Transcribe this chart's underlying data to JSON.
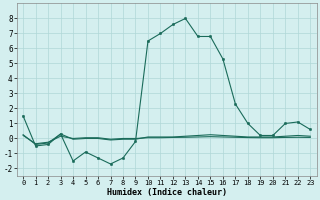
{
  "xlabel": "Humidex (Indice chaleur)",
  "ylim": [
    -2.5,
    9.0
  ],
  "xlim": [
    -0.5,
    23.5
  ],
  "background_color": "#d4efef",
  "line_color": "#1a6b5a",
  "grid_color": "#b0d8d8",
  "curve1_x": [
    0,
    1,
    2,
    3,
    4,
    5,
    6,
    7,
    8,
    9,
    10,
    11,
    12,
    13,
    14,
    15,
    16,
    17,
    18,
    19,
    20,
    21,
    22,
    23
  ],
  "curve1_y": [
    1.5,
    -0.5,
    -0.4,
    0.3,
    -1.5,
    -0.9,
    -1.3,
    -1.7,
    -1.3,
    -0.2,
    6.5,
    7.0,
    7.6,
    8.0,
    6.8,
    6.8,
    5.3,
    2.3,
    1.0,
    0.2,
    0.2,
    1.0,
    1.1,
    0.6
  ],
  "curve2_x": [
    0,
    1,
    2,
    3,
    4,
    5,
    6,
    7,
    8,
    9,
    10,
    11,
    12,
    13,
    14,
    15,
    16,
    17,
    18,
    19,
    20,
    21,
    22,
    23
  ],
  "curve2_y": [
    0.25,
    -0.4,
    -0.3,
    0.3,
    -0.05,
    0.0,
    0.0,
    -0.1,
    -0.05,
    -0.05,
    0.1,
    0.1,
    0.1,
    0.15,
    0.2,
    0.25,
    0.2,
    0.15,
    0.1,
    0.1,
    0.1,
    0.15,
    0.2,
    0.15
  ],
  "curve3_x": [
    0,
    1,
    2,
    3,
    4,
    5,
    6,
    7,
    8,
    9,
    10,
    11,
    12,
    13,
    14,
    15,
    16,
    17,
    18,
    19,
    20,
    21,
    22,
    23
  ],
  "curve3_y": [
    0.2,
    -0.35,
    -0.25,
    0.15,
    0.0,
    0.05,
    0.05,
    -0.05,
    0.0,
    0.0,
    0.05,
    0.05,
    0.07,
    0.08,
    0.1,
    0.12,
    0.1,
    0.08,
    0.06,
    0.05,
    0.05,
    0.07,
    0.08,
    0.07
  ],
  "yticks": [
    -2,
    -1,
    0,
    1,
    2,
    3,
    4,
    5,
    6,
    7,
    8
  ],
  "xticks": [
    0,
    1,
    2,
    3,
    4,
    5,
    6,
    7,
    8,
    9,
    10,
    11,
    12,
    13,
    14,
    15,
    16,
    17,
    18,
    19,
    20,
    21,
    22,
    23
  ]
}
